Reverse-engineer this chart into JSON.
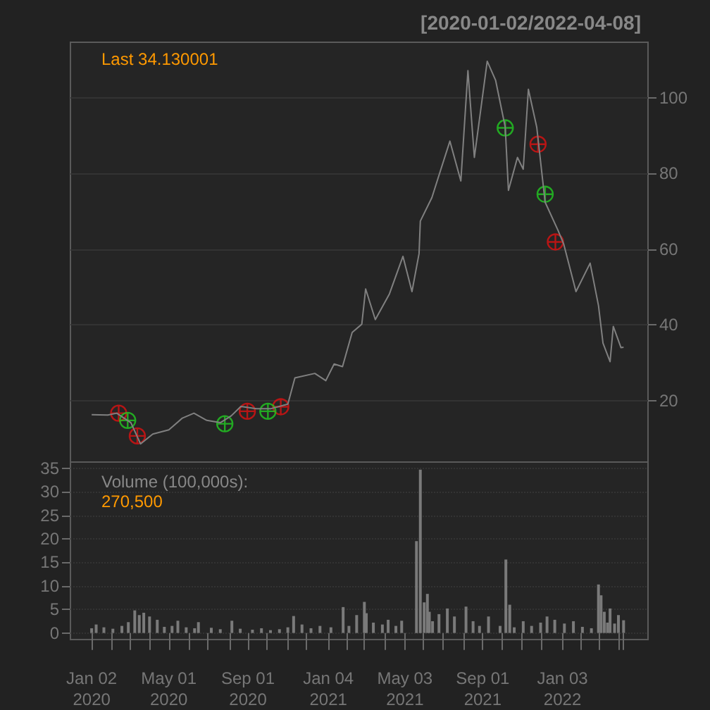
{
  "chart_data": [
    {
      "type": "line",
      "title": "[2020-01-02/2022-04-08]",
      "annotations": [
        "Last 34.130001"
      ],
      "xlim": [
        "2019-11-30",
        "2022-05-16"
      ],
      "ylim": [
        3.8,
        114.6
      ],
      "yticks": [
        20,
        40,
        60,
        80,
        100
      ],
      "grid": "y",
      "tick_labels": "y",
      "series": [
        {
          "color": "#808080",
          "marker": "none",
          "x": [
            "2020-01-02",
            "2020-01-27",
            "2020-02-10",
            "2020-03-03",
            "2020-03-18",
            "2020-04-06",
            "2020-05-01",
            "2020-05-22",
            "2020-06-09",
            "2020-06-29",
            "2020-07-20",
            "2020-08-06",
            "2020-08-21",
            "2020-09-14",
            "2020-10-07",
            "2020-11-02",
            "2020-11-13",
            "2020-12-14",
            "2020-12-31",
            "2021-01-13",
            "2021-01-26",
            "2021-02-10",
            "2021-02-25",
            "2021-03-03",
            "2021-03-18",
            "2021-04-09",
            "2021-04-30",
            "2021-05-14",
            "2021-05-25",
            "2021-05-27",
            "2021-06-14",
            "2021-06-28",
            "2021-07-12",
            "2021-07-29",
            "2021-08-09",
            "2021-08-19",
            "2021-09-08",
            "2021-09-21",
            "2021-10-06",
            "2021-10-11",
            "2021-10-25",
            "2021-11-03",
            "2021-11-11",
            "2021-11-24",
            "2021-12-07",
            "2021-12-27",
            "2022-01-05",
            "2022-01-24",
            "2022-02-15",
            "2022-02-28",
            "2022-03-07",
            "2022-03-18",
            "2022-03-23",
            "2022-04-04",
            "2022-04-08"
          ],
          "values": [
            16.3,
            16.2,
            16.7,
            14.2,
            8.6,
            11.2,
            12.3,
            15.4,
            16.7,
            14.8,
            14.2,
            16.0,
            18.5,
            17.9,
            17.9,
            19.1,
            26.0,
            27.2,
            25.3,
            29.7,
            29.0,
            38.0,
            40.2,
            49.5,
            41.4,
            48.2,
            58.1,
            48.8,
            58.8,
            67.4,
            73.6,
            81.1,
            88.5,
            78.0,
            107.1,
            84.2,
            109.6,
            104.6,
            92.2,
            75.5,
            84.2,
            81.1,
            102.2,
            92.2,
            72.4,
            65.0,
            61.3,
            48.8,
            56.3,
            45.1,
            35.2,
            30.3,
            39.6,
            34.0,
            34.1
          ]
        },
        {
          "type": "scatter",
          "color": "#dd1111",
          "marker": "cross",
          "x": [
            "2020-02-13",
            "2020-03-13",
            "2020-08-31",
            "2020-10-22",
            "2021-11-26",
            "2021-12-23"
          ],
          "values": [
            16.7,
            10.7,
            17.2,
            18.4,
            87.7,
            61.9
          ]
        },
        {
          "type": "scatter",
          "color": "#22cc22",
          "marker": "cross",
          "x": [
            "2020-02-27",
            "2020-07-27",
            "2020-10-02",
            "2021-10-06",
            "2021-12-07"
          ],
          "values": [
            14.8,
            13.9,
            17.2,
            92.0,
            74.5
          ]
        }
      ]
    },
    {
      "type": "bar",
      "annotations": [
        "Volume (100,000s):",
        "270,500"
      ],
      "xlim": [
        "2019-11-30",
        "2022-05-16"
      ],
      "xticks": [
        {
          "value": "2020-01-02",
          "label": "Jan 02\n2020"
        },
        {
          "value": "2020-02-03",
          "label": null
        },
        {
          "value": "2020-03-02",
          "label": null
        },
        {
          "value": "2020-04-01",
          "label": null
        },
        {
          "value": "2020-05-01",
          "label": "May 01\n2020"
        },
        {
          "value": "2020-06-01",
          "label": null
        },
        {
          "value": "2020-07-01",
          "label": null
        },
        {
          "value": "2020-08-03",
          "label": null
        },
        {
          "value": "2020-09-01",
          "label": "Sep 01\n2020"
        },
        {
          "value": "2020-10-01",
          "label": null
        },
        {
          "value": "2020-11-02",
          "label": null
        },
        {
          "value": "2020-12-01",
          "label": null
        },
        {
          "value": "2021-01-04",
          "label": "Jan 04\n2021"
        },
        {
          "value": "2021-02-01",
          "label": null
        },
        {
          "value": "2021-03-01",
          "label": null
        },
        {
          "value": "2021-04-01",
          "label": null
        },
        {
          "value": "2021-05-03",
          "label": "May 03\n2021"
        },
        {
          "value": "2021-06-01",
          "label": null
        },
        {
          "value": "2021-07-01",
          "label": null
        },
        {
          "value": "2021-08-02",
          "label": null
        },
        {
          "value": "2021-09-01",
          "label": "Sep 01\n2021"
        },
        {
          "value": "2021-10-01",
          "label": null
        },
        {
          "value": "2021-11-01",
          "label": null
        },
        {
          "value": "2021-12-01",
          "label": null
        },
        {
          "value": "2022-01-03",
          "label": "Jan 03\n2022"
        },
        {
          "value": "2022-02-01",
          "label": null
        },
        {
          "value": "2022-03-01",
          "label": null
        },
        {
          "value": "2022-04-01",
          "label": null
        },
        {
          "value": "2022-04-08",
          "label": null
        }
      ],
      "ylim": [
        -1.4,
        36.3
      ],
      "yticks": [
        0,
        5,
        10,
        15,
        20,
        25,
        30,
        35
      ],
      "grid": "y",
      "series": [
        {
          "color": "#7a7a7a",
          "x": [
            "2020-01-02",
            "2020-01-09",
            "2020-01-21",
            "2020-02-04",
            "2020-02-18",
            "2020-02-28",
            "2020-03-09",
            "2020-03-16",
            "2020-03-23",
            "2020-04-01",
            "2020-04-13",
            "2020-04-24",
            "2020-05-06",
            "2020-05-15",
            "2020-05-28",
            "2020-06-10",
            "2020-06-16",
            "2020-07-06",
            "2020-07-20",
            "2020-08-07",
            "2020-08-20",
            "2020-09-08",
            "2020-09-22",
            "2020-10-06",
            "2020-10-20",
            "2020-11-02",
            "2020-11-11",
            "2020-11-24",
            "2020-12-08",
            "2020-12-22",
            "2021-01-08",
            "2021-01-27",
            "2021-02-05",
            "2021-02-17",
            "2021-03-01",
            "2021-03-04",
            "2021-03-15",
            "2021-03-29",
            "2021-04-07",
            "2021-04-19",
            "2021-04-28",
            "2021-05-21",
            "2021-05-27",
            "2021-06-02",
            "2021-06-07",
            "2021-06-10",
            "2021-06-15",
            "2021-06-25",
            "2021-07-08",
            "2021-07-19",
            "2021-08-06",
            "2021-08-17",
            "2021-08-27",
            "2021-09-10",
            "2021-09-28",
            "2021-10-07",
            "2021-10-13",
            "2021-10-20",
            "2021-11-03",
            "2021-11-16",
            "2021-11-30",
            "2021-12-10",
            "2021-12-22",
            "2022-01-06",
            "2022-01-20",
            "2022-02-03",
            "2022-02-17",
            "2022-02-28",
            "2022-03-04",
            "2022-03-09",
            "2022-03-14",
            "2022-03-18",
            "2022-03-25",
            "2022-03-31",
            "2022-04-08"
          ],
          "values": [
            1.0,
            1.8,
            1.2,
            0.9,
            1.5,
            2.3,
            4.8,
            3.8,
            4.3,
            3.5,
            2.8,
            1.3,
            1.5,
            2.6,
            1.2,
            1.0,
            2.3,
            1.1,
            0.8,
            2.6,
            0.9,
            0.7,
            1.0,
            0.6,
            0.8,
            1.2,
            3.6,
            1.8,
            1.0,
            1.5,
            1.2,
            5.5,
            1.5,
            3.8,
            6.6,
            4.2,
            2.2,
            1.8,
            2.8,
            1.5,
            2.6,
            19.5,
            34.7,
            6.5,
            8.3,
            4.5,
            2.5,
            4.0,
            5.2,
            3.5,
            5.6,
            2.5,
            1.5,
            3.5,
            1.5,
            15.6,
            6.0,
            1.2,
            2.5,
            1.5,
            2.2,
            3.5,
            2.8,
            2.0,
            2.5,
            1.3,
            1.0,
            10.3,
            8.0,
            4.5,
            2.2,
            5.2,
            2.0,
            3.8,
            2.7
          ]
        }
      ]
    }
  ]
}
